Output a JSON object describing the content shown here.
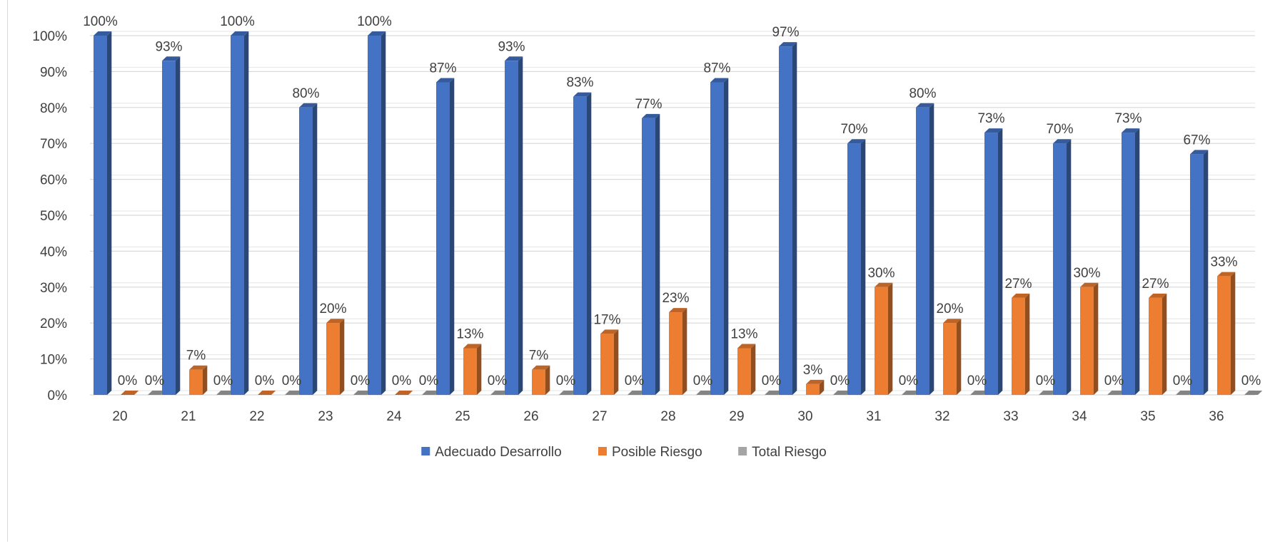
{
  "chart_data": {
    "type": "bar",
    "categories": [
      "20",
      "21",
      "22",
      "23",
      "24",
      "25",
      "26",
      "27",
      "28",
      "29",
      "30",
      "31",
      "32",
      "33",
      "34",
      "35",
      "36"
    ],
    "series": [
      {
        "name": "Adecuado Desarrollo",
        "color": "#4472C4",
        "values": [
          100,
          93,
          100,
          80,
          100,
          87,
          93,
          83,
          77,
          87,
          97,
          70,
          80,
          73,
          70,
          73,
          67
        ],
        "labels": [
          "100%",
          "93%",
          "100%",
          "80%",
          "100%",
          "87%",
          "93%",
          "83%",
          "77%",
          "87%",
          "97%",
          "70%",
          "80%",
          "73%",
          "70%",
          "73%",
          "67%"
        ]
      },
      {
        "name": "Posible Riesgo",
        "color": "#ED7D31",
        "values": [
          0,
          7,
          0,
          20,
          0,
          13,
          7,
          17,
          23,
          13,
          3,
          30,
          20,
          27,
          30,
          27,
          33
        ],
        "labels": [
          "0%",
          "7%",
          "0%",
          "20%",
          "0%",
          "13%",
          "7%",
          "17%",
          "23%",
          "13%",
          "3%",
          "30%",
          "20%",
          "27%",
          "30%",
          "27%",
          "33%"
        ]
      },
      {
        "name": "Total Riesgo",
        "color": "#A5A5A5",
        "values": [
          0,
          0,
          0,
          0,
          0,
          0,
          0,
          0,
          0,
          0,
          0,
          0,
          0,
          0,
          0,
          0,
          0
        ],
        "labels": [
          "0%",
          "0%",
          "0%",
          "0%",
          "0%",
          "0%",
          "0%",
          "0%",
          "0%",
          "0%",
          "0%",
          "0%",
          "0%",
          "0%",
          "0%",
          "0%",
          "0%"
        ]
      }
    ],
    "y_ticks": [
      "0%",
      "10%",
      "20%",
      "30%",
      "40%",
      "50%",
      "60%",
      "70%",
      "80%",
      "90%",
      "100%"
    ],
    "ylim": [
      0,
      100
    ],
    "grid": true,
    "legend": "bottom"
  }
}
